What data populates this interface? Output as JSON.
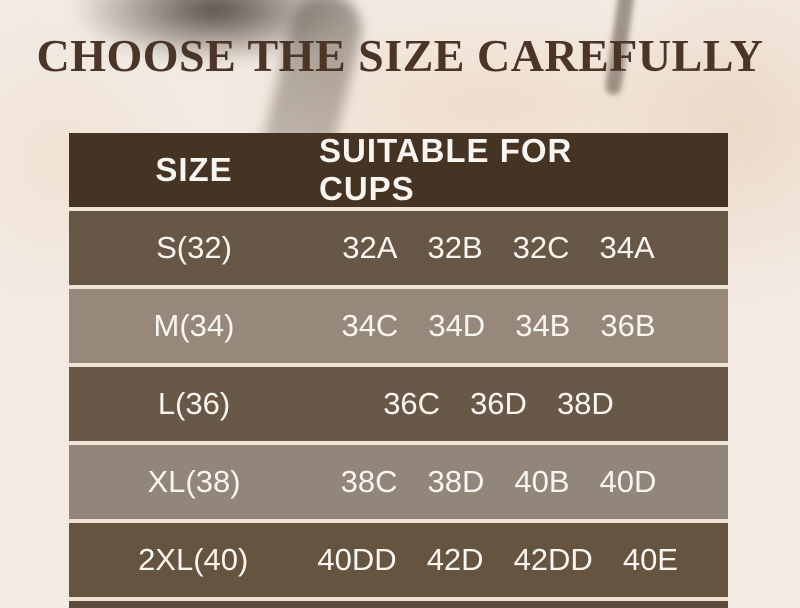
{
  "title": "CHOOSE THE SIZE CAREFULLY",
  "colors": {
    "page_bg": "#f3eae2",
    "title_text": "#4a3527",
    "header_bg": "#453324",
    "header_text": "#f8f4ef",
    "row_text": "#f8f4ef",
    "separator": "#f0e4d6",
    "partial_row_bg": "#5d4c3e"
  },
  "table": {
    "headers": [
      "SIZE",
      "SUITABLE FOR CUPS"
    ],
    "rows": [
      {
        "size": "S(32)",
        "cups": [
          "32A",
          "32B",
          "32C",
          "34A"
        ],
        "bg": "#665747"
      },
      {
        "size": "M(34)",
        "cups": [
          "34C",
          "34D",
          "34B",
          "36B"
        ],
        "bg": "#96897c"
      },
      {
        "size": "L(36)",
        "cups": [
          "36C",
          "36D",
          "38D"
        ],
        "bg": "#675848"
      },
      {
        "size": "XL(38)",
        "cups": [
          "38C",
          "38D",
          "40B",
          "40D"
        ],
        "bg": "#92857a"
      },
      {
        "size": "2XL(40)",
        "cups": [
          "40DD",
          "42D",
          "42DD",
          "40E"
        ],
        "bg": "#65543f"
      }
    ]
  },
  "chart_data": {
    "type": "table",
    "title": "CHOOSE THE SIZE CAREFULLY",
    "columns": [
      "SIZE",
      "SUITABLE FOR CUPS"
    ],
    "rows": [
      [
        "S(32)",
        "32A 32B 32C 34A"
      ],
      [
        "M(34)",
        "34C 34D 34B 36B"
      ],
      [
        "L(36)",
        "36C 36D 38D"
      ],
      [
        "XL(38)",
        "38C 38D 40B 40D"
      ],
      [
        "2XL(40)",
        "40DD 42D 42DD 40E"
      ]
    ]
  }
}
